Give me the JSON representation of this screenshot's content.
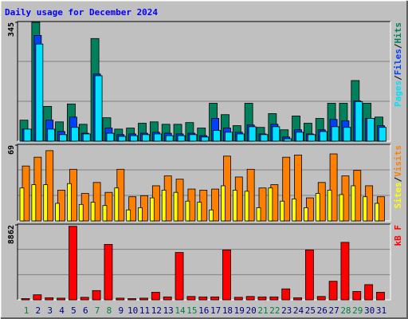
{
  "chart_data": [
    {
      "type": "bar",
      "title": "Daily usage for December 2024",
      "ylim": [
        0,
        345
      ],
      "yticks": [
        345
      ],
      "legend_separator": "/",
      "series": [
        {
          "name": "Hits",
          "color": "#00805c",
          "values": [
            61,
            345,
            101,
            56,
            108,
            49,
            298,
            68,
            35,
            38,
            52,
            56,
            49,
            49,
            54,
            38,
            110,
            77,
            45,
            110,
            40,
            80,
            33,
            73,
            52,
            66,
            110,
            110,
            176,
            110,
            70
          ]
        },
        {
          "name": "Files",
          "color": "#0040ff",
          "values": [
            35,
            307,
            61,
            28,
            70,
            23,
            195,
            38,
            19,
            21,
            23,
            26,
            23,
            21,
            23,
            16,
            66,
            38,
            26,
            47,
            21,
            49,
            12,
            33,
            21,
            33,
            63,
            59,
            117,
            66,
            45
          ]
        },
        {
          "name": "Pages",
          "color": "#00e0ff",
          "values": [
            35,
            282,
            35,
            19,
            40,
            21,
            190,
            23,
            14,
            16,
            19,
            21,
            16,
            16,
            19,
            12,
            31,
            26,
            21,
            42,
            19,
            42,
            7,
            26,
            19,
            28,
            42,
            40,
            115,
            66,
            40
          ]
        }
      ]
    },
    {
      "type": "bar",
      "ylim": [
        0,
        69
      ],
      "yticks": [
        69
      ],
      "legend_separator": "/",
      "series": [
        {
          "name": "Visits",
          "color": "#ff8000",
          "values": [
            50,
            58,
            64,
            28,
            47,
            25,
            35,
            26,
            47,
            22,
            23,
            32,
            41,
            38,
            29,
            28,
            29,
            59,
            40,
            47,
            30,
            33,
            58,
            60,
            21,
            35,
            61,
            41,
            46,
            32,
            22
          ]
        },
        {
          "name": "Sites",
          "color": "#ffff00",
          "values": [
            30,
            33,
            33,
            16,
            34,
            15,
            17,
            14,
            30,
            10,
            12,
            21,
            28,
            26,
            18,
            17,
            10,
            32,
            28,
            27,
            12,
            30,
            18,
            20,
            12,
            25,
            28,
            24,
            32,
            22,
            16
          ]
        }
      ]
    },
    {
      "type": "bar",
      "ylim": [
        0,
        8862
      ],
      "yticks": [
        8862
      ],
      "categories": [
        "1",
        "2",
        "3",
        "4",
        "5",
        "6",
        "7",
        "8",
        "9",
        "10",
        "11",
        "12",
        "13",
        "14",
        "15",
        "16",
        "17",
        "18",
        "19",
        "20",
        "21",
        "22",
        "23",
        "24",
        "25",
        "26",
        "27",
        "28",
        "29",
        "30",
        "31"
      ],
      "category_colors": [
        "#008040",
        "#000080",
        "#000080",
        "#000080",
        "#000080",
        "#000080",
        "#008040",
        "#008040",
        "#000080",
        "#000080",
        "#000080",
        "#000080",
        "#000080",
        "#008040",
        "#008040",
        "#000080",
        "#000080",
        "#000080",
        "#000080",
        "#000080",
        "#008040",
        "#008040",
        "#000080",
        "#000080",
        "#000080",
        "#000080",
        "#000080",
        "#008040",
        "#008040",
        "#000080",
        "#000080"
      ],
      "series": [
        {
          "name": "kB F",
          "color": "#ff0000",
          "values": [
            150,
            600,
            250,
            200,
            8700,
            300,
            1100,
            6560,
            200,
            150,
            200,
            900,
            350,
            5600,
            400,
            350,
            350,
            5900,
            300,
            400,
            350,
            350,
            1300,
            250,
            5900,
            400,
            2200,
            6800,
            1000,
            1800,
            900
          ]
        }
      ]
    }
  ]
}
